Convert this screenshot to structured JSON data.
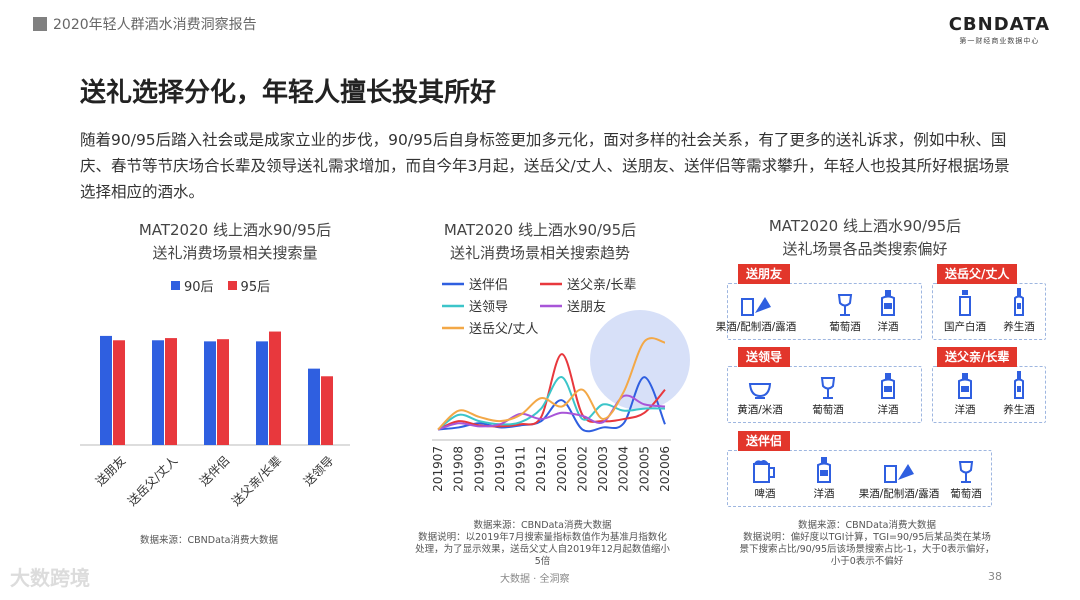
{
  "header": {
    "report_title": "2020年轻人群酒水消费洞察报告",
    "logo_main": "CBNDATA",
    "logo_sub": "第一财经商业数据中心"
  },
  "headline": "送礼选择分化，年轻人擅长投其所好",
  "intro": "随着90/95后踏入社会或是成家立业的步伐，90/95后自身标签更加多元化，面对多样的社会关系，有了更多的送礼诉求，例如中秋、国庆、春节等节庆场合长辈及领导送礼需求增加，而自今年3月起，送岳父/丈人、送朋友、送伴侣等需求攀升，年轻人也投其所好根据场景选择相应的酒水。",
  "colors": {
    "s90": "#2F5FE0",
    "s95": "#E8383D",
    "accent_red": "#E2362B",
    "dash_box": "#9EB6E0",
    "highlight": "#C9D6F5"
  },
  "chart_data": [
    {
      "type": "bar",
      "title": "MAT2020 线上酒水90/95后 送礼消费场景相关搜索量",
      "title_lines": [
        "MAT2020 线上酒水90/95后",
        "送礼消费场景相关搜索量"
      ],
      "categories": [
        "送朋友",
        "送岳父/丈人",
        "送伴侣",
        "送父亲/长辈",
        "送领导"
      ],
      "series": [
        {
          "name": "90后",
          "color": "#2F5FE0",
          "values": [
            100,
            96,
            95,
            95,
            70
          ]
        },
        {
          "name": "95后",
          "color": "#E8383D",
          "values": [
            96,
            98,
            97,
            104,
            63
          ]
        }
      ],
      "ylim": [
        0,
        110
      ],
      "grid": false,
      "legend": "top",
      "source": "数据来源：CBNData消费大数据"
    },
    {
      "type": "line",
      "title": "MAT2020 线上酒水90/95后 送礼消费场景相关搜索趋势",
      "title_lines": [
        "MAT2020 线上酒水90/95后",
        "送礼消费场景相关搜索趋势"
      ],
      "x": [
        "201907",
        "201908",
        "201909",
        "201910",
        "201911",
        "201912",
        "202001",
        "202002",
        "202003",
        "202004",
        "202005",
        "202006"
      ],
      "series": [
        {
          "name": "送伴侣",
          "color": "#2F5FE0",
          "values": [
            1.0,
            1.2,
            1.6,
            1.2,
            1.4,
            1.8,
            3.8,
            1.0,
            1.2,
            1.6,
            6.0,
            1.5
          ]
        },
        {
          "name": "送父亲/长辈",
          "color": "#E8383D",
          "values": [
            1.0,
            1.8,
            1.4,
            1.3,
            1.5,
            2.2,
            8.2,
            2.4,
            1.8,
            2.0,
            2.6,
            4.8
          ]
        },
        {
          "name": "送领导",
          "color": "#3CC5C9",
          "values": [
            1.0,
            2.4,
            1.8,
            1.5,
            1.7,
            3.0,
            6.0,
            2.0,
            3.4,
            2.8,
            3.0,
            3.0
          ]
        },
        {
          "name": "送朋友",
          "color": "#A855D8",
          "values": [
            1.0,
            1.6,
            1.3,
            1.5,
            2.5,
            2.0,
            2.6,
            2.3,
            1.7,
            4.2,
            3.4,
            3.2
          ]
        },
        {
          "name": "送岳父/丈人",
          "color": "#F3A847",
          "values": [
            1.0,
            2.8,
            2.2,
            1.8,
            2.4,
            4.0,
            3.2,
            4.8,
            2.0,
            4.6,
            9.4,
            9.3
          ]
        }
      ],
      "ylim": [
        0,
        10.5
      ],
      "grid": false,
      "legend": "top",
      "source_lines": [
        "数据来源：CBNData消费大数据",
        "数据说明：以2019年7月搜索量指标数值作为基准月指数化",
        "处理，为了显示效果，送岳父丈人自2019年12月起数值缩小",
        "5倍"
      ]
    }
  ],
  "panel3": {
    "title_lines": [
      "MAT2020 线上酒水90/95后",
      "送礼场景各品类搜索偏好"
    ],
    "groups": [
      {
        "tag": "送朋友",
        "items": [
          {
            "label": "果酒/配制酒/露酒",
            "icon": "fruit-wine-icon"
          },
          {
            "label": "葡萄酒",
            "icon": "wine-glass-icon"
          },
          {
            "label": "洋酒",
            "icon": "liquor-bottle-icon"
          }
        ]
      },
      {
        "tag": "送岳父/丈人",
        "items": [
          {
            "label": "国产白酒",
            "icon": "baijiu-bottle-icon"
          },
          {
            "label": "养生酒",
            "icon": "health-wine-icon"
          }
        ]
      },
      {
        "tag": "送领导",
        "items": [
          {
            "label": "黄酒/米酒",
            "icon": "rice-wine-bowl-icon"
          },
          {
            "label": "葡萄酒",
            "icon": "wine-glass-icon"
          },
          {
            "label": "洋酒",
            "icon": "liquor-bottle-icon"
          }
        ]
      },
      {
        "tag": "送父亲/长辈",
        "items": [
          {
            "label": "洋酒",
            "icon": "liquor-bottle-icon"
          },
          {
            "label": "养生酒",
            "icon": "health-wine-icon"
          }
        ]
      },
      {
        "tag": "送伴侣",
        "items": [
          {
            "label": "啤酒",
            "icon": "beer-mug-icon"
          },
          {
            "label": "洋酒",
            "icon": "liquor-bottle-icon"
          },
          {
            "label": "果酒/配制酒/露酒",
            "icon": "fruit-wine-icon"
          },
          {
            "label": "葡萄酒",
            "icon": "wine-glass-icon"
          }
        ]
      }
    ],
    "source_lines": [
      "数据来源：CBNData消费大数据",
      "数据说明：偏好度以TGI计算，TGI=90/95后某品类在某场",
      "景下搜索占比/90/95后该场景搜索占比-1，大于0表示偏好，",
      "小于0表示不偏好"
    ]
  },
  "footer": {
    "watermark": "大数跨境",
    "center": "大数据 · 全洞察",
    "page": "38"
  }
}
